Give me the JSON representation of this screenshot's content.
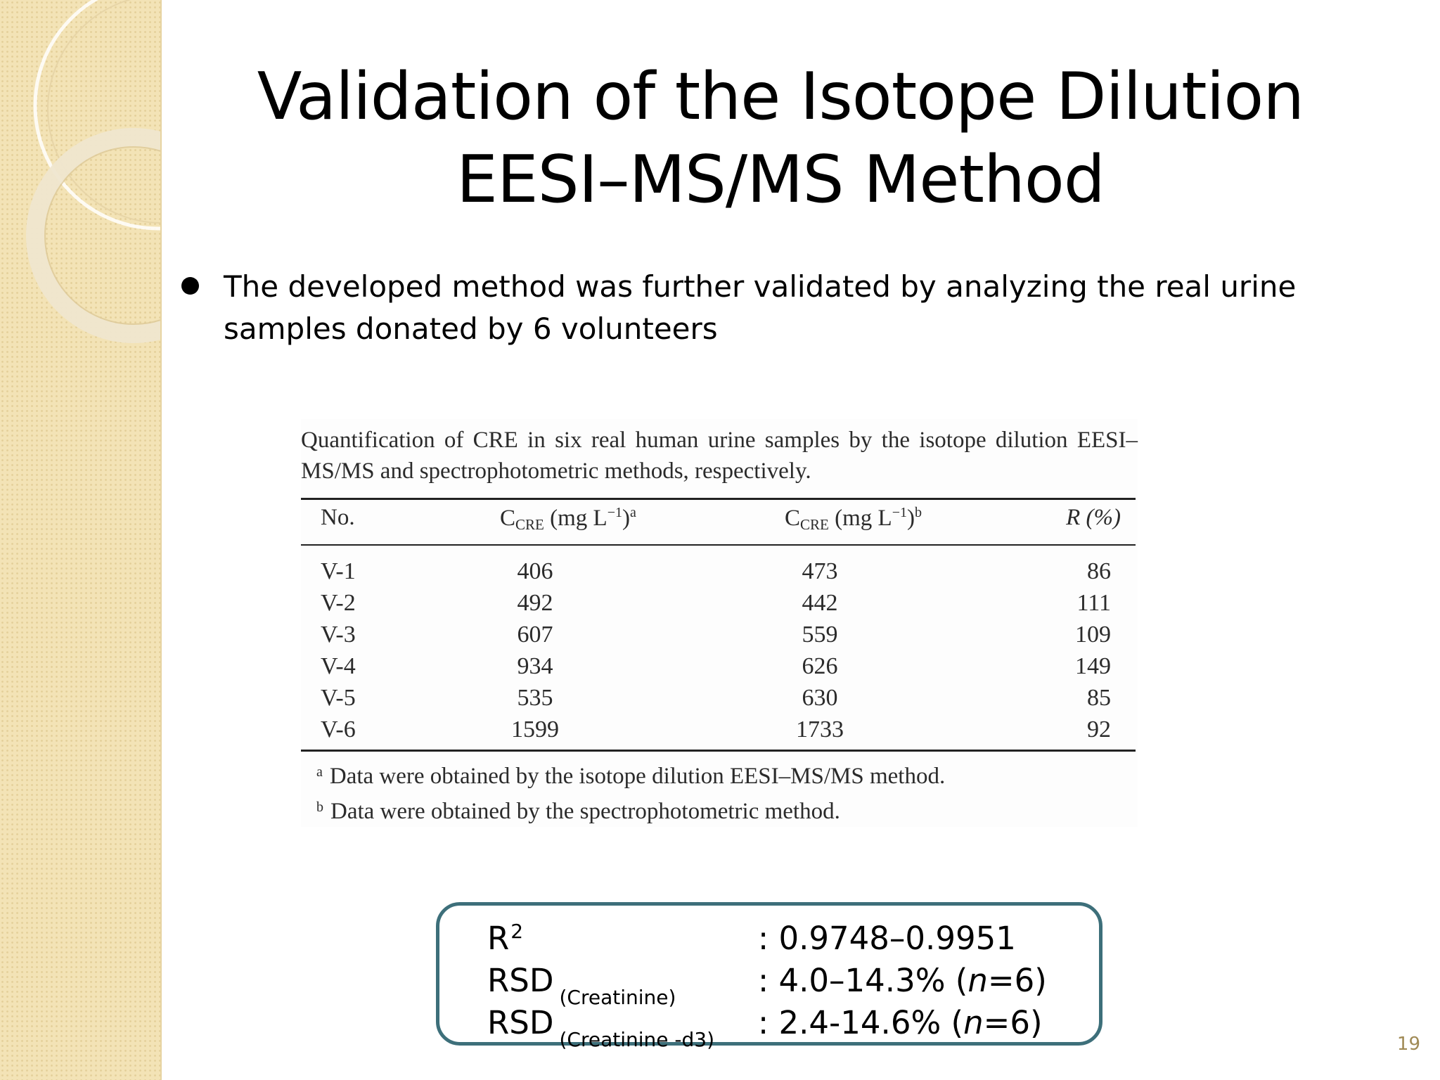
{
  "slide": {
    "title": "Validation of the Isotope Dilution EESI–MS/MS Method",
    "bullet": "The developed method was further validated by analyzing the real urine samples donated by 6 volunteers",
    "page_number": "19"
  },
  "table": {
    "caption": "Quantification of CRE in six real human urine samples by the isotope dilution EESI–MS/MS and spectrophotometric methods, respectively.",
    "headers": {
      "no": "No.",
      "c_main": "C",
      "c_sub": "CRE",
      "c_unit": "(mg L",
      "c_exp": "−1",
      "c_close": ")",
      "mark_a": "a",
      "mark_b": "b",
      "r": "R (%)"
    },
    "rows": [
      {
        "no": "V-1",
        "a": "406",
        "b": "473",
        "r": "86"
      },
      {
        "no": "V-2",
        "a": "492",
        "b": "442",
        "r": "111"
      },
      {
        "no": "V-3",
        "a": "607",
        "b": "559",
        "r": "109"
      },
      {
        "no": "V-4",
        "a": "934",
        "b": "626",
        "r": "149"
      },
      {
        "no": "V-5",
        "a": "535",
        "b": "630",
        "r": "85"
      },
      {
        "no": "V-6",
        "a": "1599",
        "b": "1733",
        "r": "92"
      }
    ],
    "footnotes": [
      {
        "mark": "a",
        "text": "Data were obtained by the isotope dilution EESI–MS/MS method."
      },
      {
        "mark": "b",
        "text": "Data were obtained by the spectrophotometric method."
      }
    ]
  },
  "stats": {
    "r2_label": "R",
    "r2_sup": "2",
    "r2_value": ": 0.9748–0.9951",
    "rsd1_label": "RSD",
    "rsd1_sub": "(Creatinine)",
    "rsd1_value_pre": ": 4.0–14.3% (",
    "rsd1_n": "n",
    "rsd1_value_post": "=6)",
    "rsd2_label": "RSD",
    "rsd2_sub": "(Creatinine -d3)",
    "rsd2_value_pre": ": 2.4-14.6%  (",
    "rsd2_n": "n",
    "rsd2_value_post": "=6)"
  },
  "colors": {
    "box_border": "#3d6f7a",
    "side_band": "#f3e3b6"
  }
}
